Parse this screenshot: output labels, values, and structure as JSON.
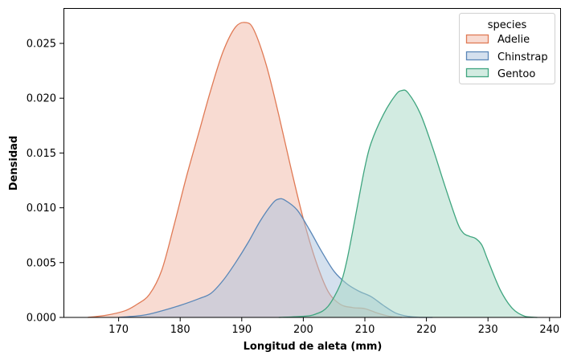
{
  "chart_data": {
    "type": "area",
    "title": "",
    "xlabel": "Longitud de aleta (mm)",
    "ylabel": "Densidad",
    "xlim": [
      161,
      242
    ],
    "ylim": [
      0,
      0.0282
    ],
    "xticks": [
      170,
      180,
      190,
      200,
      210,
      220,
      230,
      240
    ],
    "yticks": [
      0.0,
      0.005,
      0.01,
      0.015,
      0.02,
      0.025
    ],
    "ytick_labels": [
      "0.000",
      "0.005",
      "0.010",
      "0.015",
      "0.020",
      "0.025"
    ],
    "grid": false,
    "legend": {
      "title": "species",
      "position": "upper right",
      "entries": [
        "Adelie",
        "Chinstrap",
        "Gentoo"
      ]
    },
    "series": [
      {
        "name": "Adelie",
        "color": "#e07a55",
        "fill": "#f2b7a6",
        "x": [
          165,
          168,
          171,
          173,
          175,
          177,
          179,
          181,
          183,
          185,
          187,
          189,
          190.7,
          192,
          194,
          196,
          198,
          200,
          202,
          204,
          206,
          208,
          210,
          212,
          214,
          216
        ],
        "y": [
          0.0,
          0.0002,
          0.0006,
          0.0012,
          0.0021,
          0.0043,
          0.0084,
          0.0128,
          0.0168,
          0.0208,
          0.0243,
          0.0265,
          0.0269,
          0.0262,
          0.023,
          0.0185,
          0.0136,
          0.009,
          0.0052,
          0.0024,
          0.0012,
          0.0009,
          0.0008,
          0.0004,
          0.0001,
          0.0
        ]
      },
      {
        "name": "Chinstrap",
        "color": "#5a87b8",
        "fill": "#a9c2de",
        "x": [
          170,
          174,
          177,
          180,
          183,
          185,
          187,
          189,
          191,
          193,
          195,
          196,
          197,
          199,
          201,
          203,
          205,
          207,
          209,
          211,
          213,
          215,
          217,
          219,
          221
        ],
        "y": [
          0.0,
          0.0002,
          0.0006,
          0.0011,
          0.0017,
          0.0022,
          0.0034,
          0.005,
          0.0068,
          0.0088,
          0.0104,
          0.0108,
          0.0107,
          0.0098,
          0.008,
          0.006,
          0.0042,
          0.0031,
          0.0024,
          0.0019,
          0.0011,
          0.0004,
          0.0001,
          0.0,
          0.0
        ]
      },
      {
        "name": "Gentoo",
        "color": "#3fa57f",
        "fill": "#a5d8c3",
        "x": [
          196,
          200,
          202,
          204,
          206,
          207,
          208,
          209,
          210,
          211,
          213,
          215,
          216,
          217,
          219,
          221,
          223,
          225,
          226,
          227,
          228,
          229,
          230,
          232,
          234,
          236,
          238
        ],
        "y": [
          0.0,
          0.0001,
          0.0003,
          0.001,
          0.003,
          0.005,
          0.0078,
          0.0108,
          0.0137,
          0.0159,
          0.0185,
          0.0203,
          0.0207,
          0.0205,
          0.0186,
          0.0155,
          0.012,
          0.0087,
          0.0077,
          0.0074,
          0.0072,
          0.0066,
          0.0052,
          0.0025,
          0.0008,
          0.0001,
          0.0
        ]
      }
    ]
  }
}
